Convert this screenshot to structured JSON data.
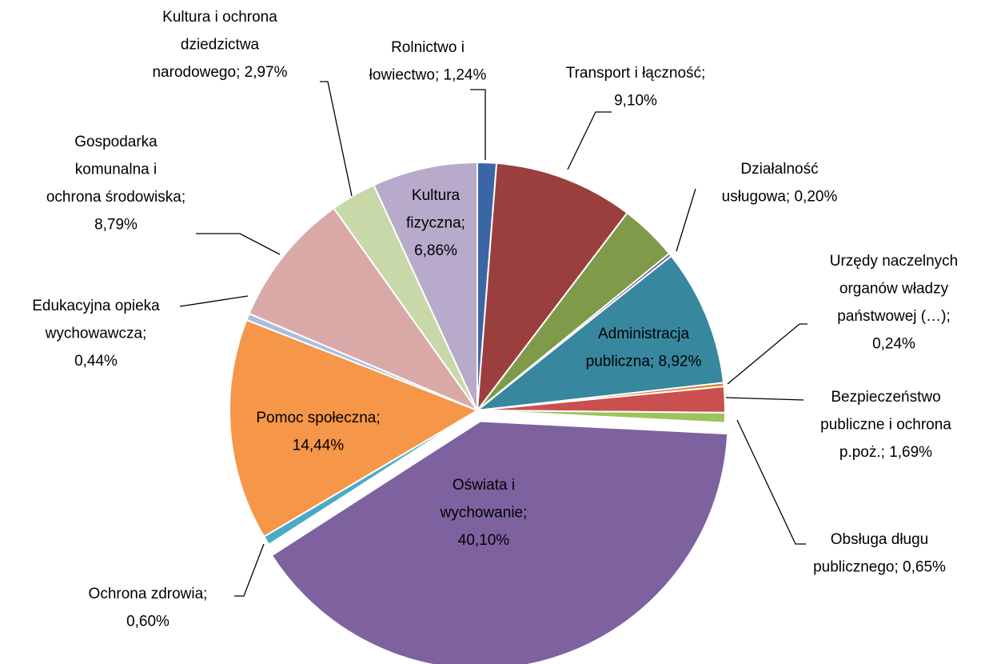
{
  "chart_data": {
    "type": "pie",
    "labels": [
      [
        "Rolnictwo i",
        "łowiectwo; 1,24%"
      ],
      [
        "Transport i łączność;",
        "9,10%"
      ],
      null,
      [
        "Działalność",
        "usługowa; 0,20%"
      ],
      [
        "Administracja",
        "publiczna; 8,92%"
      ],
      [
        "Urzędy naczelnych",
        "organów władzy",
        "państwowej (…);",
        "0,24%"
      ],
      [
        "Bezpieczeństwo",
        "publiczne i ochrona",
        "p.poż.; 1,69%"
      ],
      [
        "Obsługa długu",
        "publicznego; 0,65%"
      ],
      [
        "Oświata i",
        "wychowanie;",
        "40,10%"
      ],
      [
        "Ochrona zdrowia;",
        "0,60%"
      ],
      [
        "Pomoc społeczna;",
        "14,44%"
      ],
      [
        "Edukacyjna opieka",
        "wychowawcza;",
        "0,44%"
      ],
      [
        "Gospodarka",
        "komunalna i",
        "ochrona środowiska;",
        "8,79%"
      ],
      [
        "Kultura i ochrona",
        "dziedzictwa",
        "narodowego; 2,97%"
      ],
      [
        "Kultura",
        "fizyczna;",
        "6,86%"
      ]
    ],
    "values": [
      1.24,
      9.1,
      3.76,
      0.2,
      8.92,
      0.24,
      1.69,
      0.65,
      40.1,
      0.6,
      14.44,
      0.44,
      8.79,
      2.97,
      6.86
    ],
    "colors": [
      "#3b66a5",
      "#9b3f3e",
      "#7f9a48",
      "#6a4a8c",
      "#37879f",
      "#e07b2b",
      "#c9504e",
      "#9cc45a",
      "#7e62a0",
      "#4aabc6",
      "#f59648",
      "#a9bee0",
      "#d9a9a8",
      "#c8d8a8",
      "#b7aacb"
    ]
  }
}
